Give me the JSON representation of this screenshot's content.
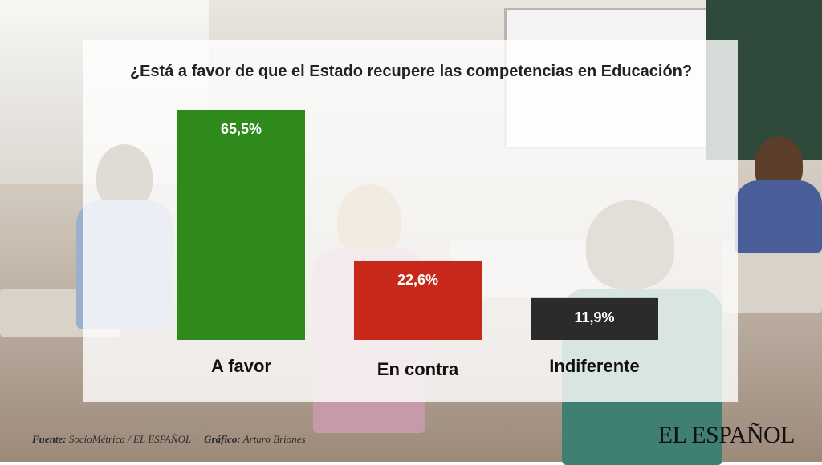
{
  "chart_data": {
    "type": "bar",
    "title": "¿Está a favor de que el Estado recupere las competencias en Educación?",
    "categories": [
      "A favor",
      "En contra",
      "Indiferente"
    ],
    "values": [
      65.5,
      22.6,
      11.9
    ],
    "value_labels": [
      "65,5%",
      "22,6%",
      "11,9%"
    ],
    "colors": [
      "#2e8b1b",
      "#c8281a",
      "#2b2b2b"
    ],
    "ylim": [
      0,
      65.5
    ],
    "grid": false,
    "legend": "none"
  },
  "footer": {
    "source_label": "Fuente:",
    "source_value": "SocioMétrica / EL ESPAÑOL",
    "graphic_label": "Gráfico:",
    "graphic_value": "Arturo Briones"
  },
  "logo": "EL ESPAÑOL"
}
